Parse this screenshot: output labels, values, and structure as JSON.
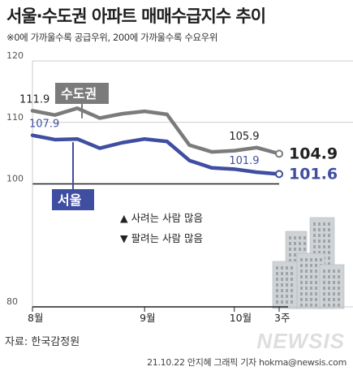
{
  "title": "서울·수도권 아파트 매매수급지수 추이",
  "subtitle": "※0에 가까울수록 공급우위, 200에 가까울수록 수요우위",
  "source": "자료: 한국감정원",
  "credit": "21.10.22 안지혜 그래픽 기자 hokma@newsis.com",
  "watermark": "NEWSIS",
  "annotations": {
    "up": "▲ 사려는 사람 많음",
    "down": "▼ 팔려는 사람 많음"
  },
  "colors": {
    "metro": "#7b7b7b",
    "seoul": "#3f4ea0",
    "baseline": "#222222",
    "grid": "#bdbdbd",
    "buildings": "#cfd3d6"
  },
  "chart_data": {
    "type": "line",
    "x": [
      1,
      2,
      3,
      4,
      5,
      6,
      7,
      8,
      9,
      10,
      11,
      12
    ],
    "xticks": [
      {
        "x": 1,
        "label": "8월"
      },
      {
        "x": 6,
        "label": "9월"
      },
      {
        "x": 10,
        "label": "10월"
      },
      {
        "x": 12,
        "label": "3주"
      }
    ],
    "yticks": [
      80,
      100,
      110,
      120
    ],
    "ylim": [
      80,
      120
    ],
    "baseline": 100,
    "series": [
      {
        "name": "수도권",
        "values": [
          111.9,
          111.2,
          112.3,
          110.7,
          111.4,
          111.8,
          111.3,
          106.3,
          105.2,
          105.4,
          105.9,
          104.9
        ],
        "labels": [
          {
            "index": 0,
            "text": "111.9"
          },
          {
            "index": 10,
            "text": "105.9"
          },
          {
            "index": 11,
            "text": "104.9"
          }
        ]
      },
      {
        "name": "서울",
        "values": [
          107.9,
          107.2,
          107.3,
          105.8,
          106.7,
          107.3,
          106.9,
          103.8,
          102.6,
          102.4,
          101.9,
          101.6
        ],
        "labels": [
          {
            "index": 0,
            "text": "107.9"
          },
          {
            "index": 10,
            "text": "101.9"
          },
          {
            "index": 11,
            "text": "101.6"
          }
        ]
      }
    ]
  }
}
